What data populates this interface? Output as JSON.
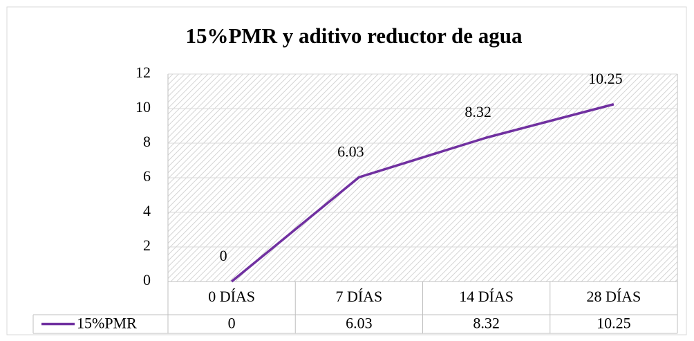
{
  "chart_data": {
    "type": "line",
    "title": "15%PMR y aditivo reductor de agua",
    "categories": [
      "0 DÍAS",
      "7 DÍAS",
      "14 DÍAS",
      "28 DÍAS"
    ],
    "series": [
      {
        "name": "15%PMR",
        "color": "#7030a0",
        "values": [
          0,
          6.03,
          8.32,
          10.25
        ]
      }
    ],
    "ylim": [
      0,
      12
    ],
    "yticks": [
      0,
      2,
      4,
      6,
      8,
      10,
      12
    ],
    "grid": true,
    "data_table": true
  }
}
